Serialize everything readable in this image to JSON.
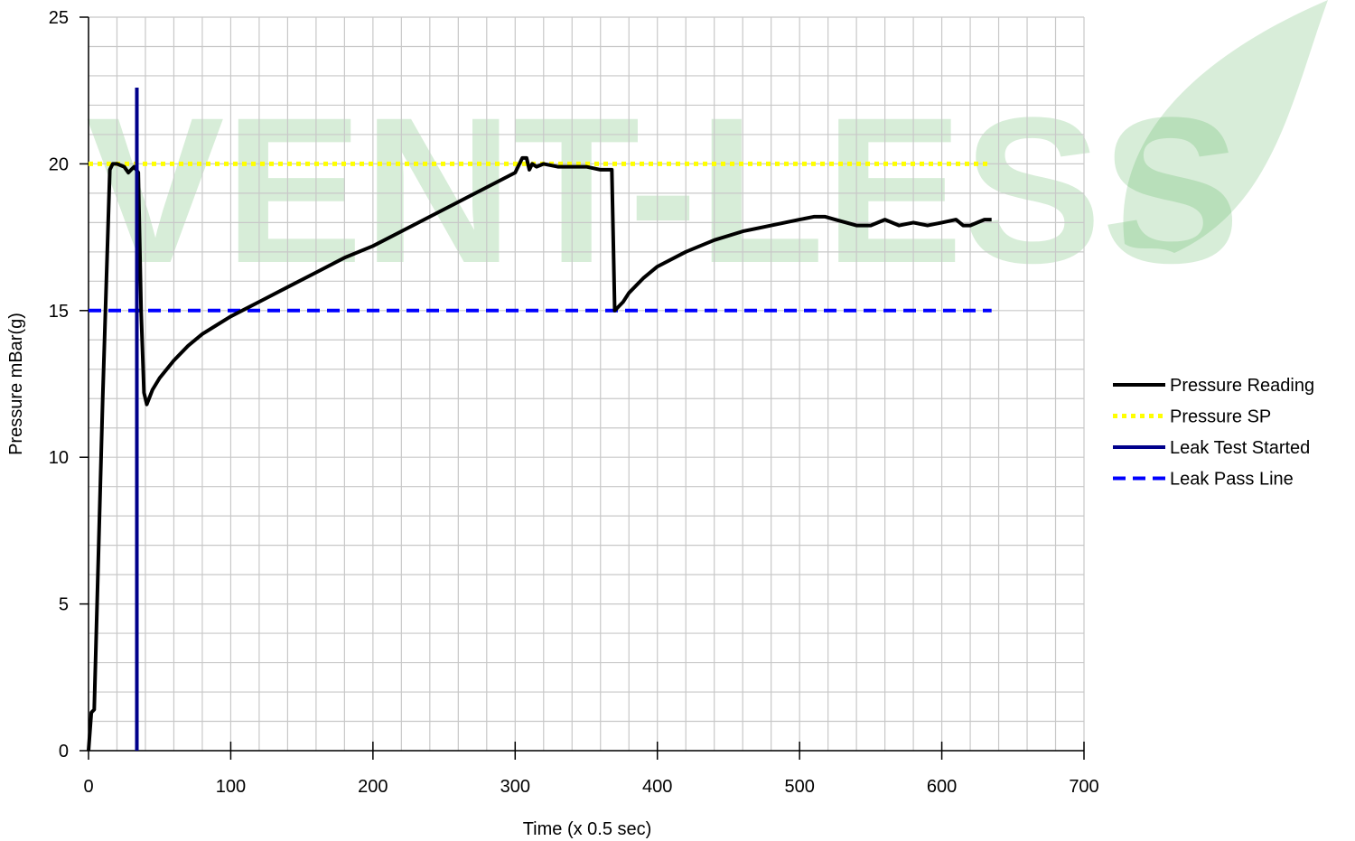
{
  "watermark": {
    "text": "VENT-LESS",
    "color": "#4caf50"
  },
  "chart_data": {
    "type": "line",
    "title": "",
    "xlabel": "Time (x 0.5 sec)",
    "ylabel": "Pressure mBar(g)",
    "xlim": [
      0,
      700
    ],
    "ylim": [
      0,
      25
    ],
    "x_ticks": [
      0,
      100,
      200,
      300,
      400,
      500,
      600,
      700
    ],
    "y_ticks": [
      0,
      5,
      10,
      15,
      20,
      25
    ],
    "x_minor_step": 20,
    "y_minor_step": 1,
    "grid": true,
    "legend_position": "right",
    "series": [
      {
        "name": "Pressure Reading",
        "color": "#000000",
        "style": "solid",
        "x": [
          0,
          2,
          4,
          10,
          15,
          17,
          20,
          25,
          28,
          30,
          32,
          35,
          37,
          39,
          41,
          45,
          50,
          60,
          70,
          80,
          90,
          100,
          120,
          140,
          160,
          180,
          200,
          220,
          240,
          260,
          280,
          300,
          305,
          308,
          310,
          312,
          315,
          320,
          330,
          340,
          350,
          360,
          365,
          368,
          370,
          372,
          376,
          380,
          390,
          400,
          420,
          440,
          460,
          480,
          500,
          510,
          518,
          525,
          540,
          550,
          560,
          570,
          580,
          590,
          600,
          610,
          615,
          620,
          625,
          630,
          635
        ],
        "y": [
          0,
          1.3,
          1.4,
          12.0,
          19.8,
          20.0,
          20.0,
          19.9,
          19.7,
          19.8,
          19.9,
          19.7,
          15.0,
          12.2,
          11.8,
          12.3,
          12.7,
          13.3,
          13.8,
          14.2,
          14.5,
          14.8,
          15.3,
          15.8,
          16.3,
          16.8,
          17.2,
          17.7,
          18.2,
          18.7,
          19.2,
          19.7,
          20.2,
          20.2,
          19.8,
          20.0,
          19.9,
          20.0,
          19.9,
          19.9,
          19.9,
          19.8,
          19.8,
          19.8,
          15.0,
          15.1,
          15.3,
          15.6,
          16.1,
          16.5,
          17.0,
          17.4,
          17.7,
          17.9,
          18.1,
          18.2,
          18.2,
          18.1,
          17.9,
          17.9,
          18.1,
          17.9,
          18.0,
          17.9,
          18.0,
          18.1,
          17.9,
          17.9,
          18.0,
          18.1,
          18.1
        ]
      },
      {
        "name": "Pressure SP",
        "color": "#ffff00",
        "style": "dotted",
        "x": [
          0,
          635
        ],
        "y": [
          20,
          20
        ]
      },
      {
        "name": "Leak Test Started",
        "color": "#00008b",
        "style": "solid",
        "x": [
          34,
          34
        ],
        "y": [
          0,
          22.6
        ]
      },
      {
        "name": "Leak Pass Line",
        "color": "#0000ff",
        "style": "dashed",
        "x": [
          0,
          635
        ],
        "y": [
          15,
          15
        ]
      }
    ]
  }
}
